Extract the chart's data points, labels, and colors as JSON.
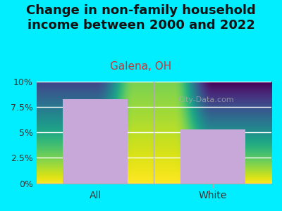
{
  "title": "Change in non-family household\nincome between 2000 and 2022",
  "subtitle": "Galena, OH",
  "categories": [
    "All",
    "White"
  ],
  "values": [
    8.3,
    5.3
  ],
  "bar_color": "#c8a8d8",
  "title_fontsize": 13,
  "subtitle_fontsize": 11,
  "subtitle_color": "#cc3333",
  "title_color": "#111111",
  "tick_label_color": "#333333",
  "ylim": [
    0,
    10
  ],
  "yticks": [
    0,
    2.5,
    5.0,
    7.5,
    10.0
  ],
  "ytick_labels": [
    "0%",
    "2.5%",
    "5%",
    "7.5%",
    "10%"
  ],
  "background_outer": "#00eeff",
  "background_plot_top": "#e8f5e0",
  "background_plot_bottom": "#ffffff",
  "watermark": "City-Data.com"
}
